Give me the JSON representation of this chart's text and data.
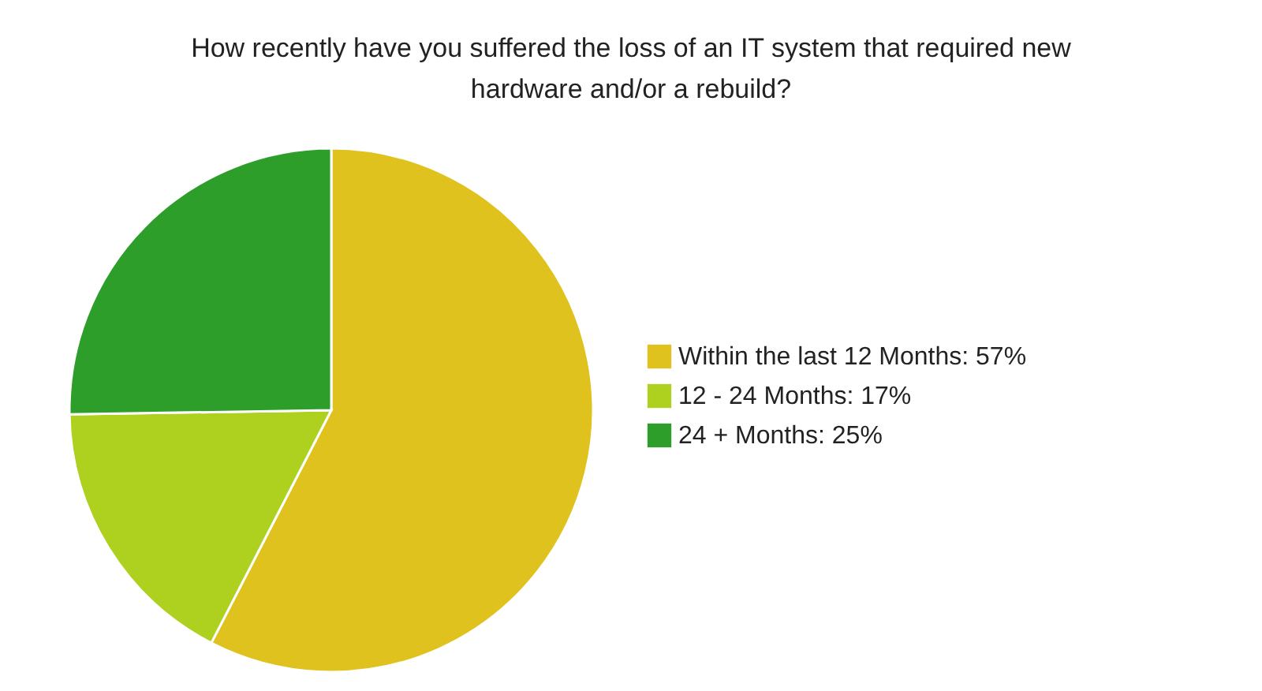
{
  "chart_data": {
    "type": "pie",
    "title": "How recently have you suffered the loss of an IT system that required new hardware and/or a rebuild?",
    "categories": [
      "Within the last 12 Months",
      "12 - 24 Months",
      "24 + Months"
    ],
    "values": [
      57,
      17,
      25
    ],
    "value_labels": [
      "57%",
      "17%",
      "25%"
    ],
    "colors": [
      "#e0c21f",
      "#add11e",
      "#2e9e2b"
    ],
    "legend": "right"
  }
}
